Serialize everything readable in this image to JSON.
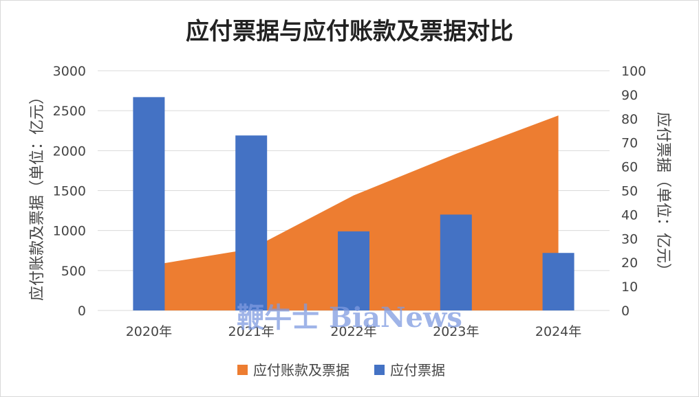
{
  "chart_data": {
    "type": "bar",
    "title": "应付票据与应付账款及票据对比",
    "categories": [
      "2020年",
      "2021年",
      "2022年",
      "2023年",
      "2024年"
    ],
    "series": [
      {
        "name": "应付账款及票据",
        "chart": "area",
        "axis": "left",
        "color": "#ED7D31",
        "values": [
          560,
          770,
          1440,
          1960,
          2440
        ]
      },
      {
        "name": "应付票据",
        "chart": "bar",
        "axis": "right",
        "color": "#4472C4",
        "values": [
          89,
          73,
          33,
          40,
          24
        ]
      }
    ],
    "y_left": {
      "label": "应付账款及票据（单位：亿元）",
      "min": 0,
      "max": 3000,
      "ticks": [
        "0",
        "500",
        "1000",
        "1500",
        "2000",
        "2500",
        "3000"
      ]
    },
    "y_right": {
      "label": "应付票据（单位：亿元）",
      "min": 0,
      "max": 100,
      "ticks": [
        "0",
        "10",
        "20",
        "30",
        "40",
        "50",
        "60",
        "70",
        "80",
        "90",
        "100"
      ]
    },
    "grid": true,
    "legend_position": "bottom"
  },
  "watermark": "鞭牛士 BiaNews"
}
